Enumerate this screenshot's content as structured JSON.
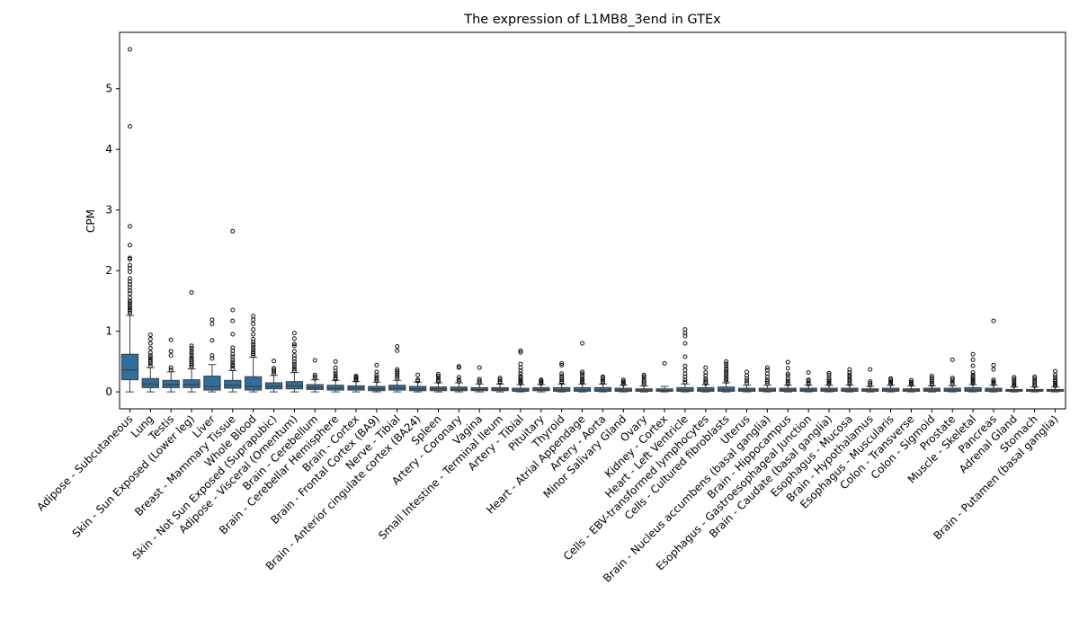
{
  "chart_data": {
    "type": "box",
    "title": "The expression of L1MB8_3end in GTEx",
    "xlabel": "",
    "ylabel": "CPM",
    "ylim": [
      -0.28,
      5.93
    ],
    "yticks": [
      0,
      1,
      2,
      3,
      4,
      5
    ],
    "box_color": "#2e6f9e",
    "grid": false,
    "categories": [
      "Adipose - Subcutaneous",
      "Lung",
      "Testis",
      "Skin - Sun Exposed (Lower leg)",
      "Liver",
      "Breast - Mammary Tissue",
      "Whole Blood",
      "Skin - Not Sun Exposed (Suprapubic)",
      "Adipose - Visceral (Omentum)",
      "Brain - Cerebellum",
      "Brain - Cerebellar Hemisphere",
      "Brain - Cortex",
      "Brain - Frontal Cortex (BA9)",
      "Nerve - Tibial",
      "Brain - Anterior cingulate cortex (BA24)",
      "Spleen",
      "Artery - Coronary",
      "Vagina",
      "Small Intestine - Terminal Ileum",
      "Artery - Tibial",
      "Pituitary",
      "Thyroid",
      "Heart - Atrial Appendage",
      "Artery - Aorta",
      "Minor Salivary Gland",
      "Ovary",
      "Kidney - Cortex",
      "Heart - Left Ventricle",
      "Cells - EBV-transformed lymphocytes",
      "Cells - Cultured fibroblasts",
      "Uterus",
      "Brain - Nucleus accumbens (basal ganglia)",
      "Brain - Hippocampus",
      "Esophagus - Gastroesophageal Junction",
      "Brain - Caudate (basal ganglia)",
      "Esophagus - Mucosa",
      "Brain - Hypothalamus",
      "Esophagus - Muscularis",
      "Colon - Transverse",
      "Colon - Sigmoid",
      "Prostate",
      "Muscle - Skeletal",
      "Pancreas",
      "Adrenal Gland",
      "Stomach",
      "Brain - Putamen (basal ganglia)"
    ],
    "boxes": [
      {
        "min": 0.0,
        "q1": 0.2,
        "median": 0.36,
        "q3": 0.62,
        "max": 1.26,
        "outliers": [
          1.3,
          1.33,
          1.36,
          1.4,
          1.43,
          1.47,
          1.5,
          1.55,
          1.62,
          1.67,
          1.72,
          1.77,
          1.82,
          1.87,
          1.98,
          2.04,
          2.09,
          2.19,
          2.21,
          2.42,
          2.73,
          4.38,
          5.65
        ]
      },
      {
        "min": 0.0,
        "q1": 0.07,
        "median": 0.13,
        "q3": 0.22,
        "max": 0.4,
        "outliers": [
          0.43,
          0.47,
          0.5,
          0.53,
          0.57,
          0.6,
          0.65,
          0.72,
          0.8,
          0.87,
          0.94
        ]
      },
      {
        "min": 0.0,
        "q1": 0.07,
        "median": 0.12,
        "q3": 0.19,
        "max": 0.33,
        "outliers": [
          0.36,
          0.4,
          0.6,
          0.67,
          0.86
        ]
      },
      {
        "min": 0.0,
        "q1": 0.07,
        "median": 0.12,
        "q3": 0.2,
        "max": 0.38,
        "outliers": [
          0.41,
          0.44,
          0.47,
          0.5,
          0.53,
          0.56,
          0.6,
          0.64,
          0.68,
          0.72,
          0.76,
          1.64
        ]
      },
      {
        "min": 0.0,
        "q1": 0.03,
        "median": 0.09,
        "q3": 0.26,
        "max": 0.45,
        "outliers": [
          0.55,
          0.6,
          0.85,
          1.12,
          1.19
        ]
      },
      {
        "min": 0.0,
        "q1": 0.06,
        "median": 0.11,
        "q3": 0.19,
        "max": 0.35,
        "outliers": [
          0.38,
          0.42,
          0.45,
          0.49,
          0.53,
          0.58,
          0.62,
          0.68,
          0.73,
          0.95,
          1.17,
          1.35,
          2.65
        ]
      },
      {
        "min": 0.0,
        "q1": 0.03,
        "median": 0.09,
        "q3": 0.25,
        "max": 0.57,
        "outliers": [
          0.6,
          0.63,
          0.66,
          0.7,
          0.74,
          0.78,
          0.82,
          0.87,
          0.95,
          1.03,
          1.12,
          1.19,
          1.25
        ]
      },
      {
        "min": 0.0,
        "q1": 0.05,
        "median": 0.09,
        "q3": 0.15,
        "max": 0.27,
        "outliers": [
          0.3,
          0.33,
          0.36,
          0.39,
          0.51
        ]
      },
      {
        "min": 0.0,
        "q1": 0.05,
        "median": 0.1,
        "q3": 0.17,
        "max": 0.32,
        "outliers": [
          0.35,
          0.38,
          0.42,
          0.46,
          0.5,
          0.55,
          0.6,
          0.67,
          0.76,
          0.79,
          0.88,
          0.97
        ]
      },
      {
        "min": 0.0,
        "q1": 0.04,
        "median": 0.07,
        "q3": 0.12,
        "max": 0.2,
        "outliers": [
          0.22,
          0.25,
          0.28,
          0.52
        ]
      },
      {
        "min": 0.0,
        "q1": 0.03,
        "median": 0.06,
        "q3": 0.11,
        "max": 0.19,
        "outliers": [
          0.21,
          0.23,
          0.26,
          0.3,
          0.34,
          0.4,
          0.5
        ]
      },
      {
        "min": 0.0,
        "q1": 0.03,
        "median": 0.06,
        "q3": 0.1,
        "max": 0.17,
        "outliers": [
          0.19,
          0.21,
          0.23,
          0.25,
          0.26
        ]
      },
      {
        "min": 0.0,
        "q1": 0.02,
        "median": 0.05,
        "q3": 0.09,
        "max": 0.16,
        "outliers": [
          0.18,
          0.21,
          0.24,
          0.28,
          0.33,
          0.44
        ]
      },
      {
        "min": 0.0,
        "q1": 0.03,
        "median": 0.06,
        "q3": 0.11,
        "max": 0.19,
        "outliers": [
          0.22,
          0.25,
          0.28,
          0.31,
          0.34,
          0.37,
          0.68,
          0.75
        ]
      },
      {
        "min": 0.0,
        "q1": 0.02,
        "median": 0.05,
        "q3": 0.09,
        "max": 0.16,
        "outliers": [
          0.18,
          0.2,
          0.28
        ]
      },
      {
        "min": 0.0,
        "q1": 0.02,
        "median": 0.05,
        "q3": 0.08,
        "max": 0.15,
        "outliers": [
          0.17,
          0.19,
          0.22,
          0.26,
          0.29
        ]
      },
      {
        "min": 0.0,
        "q1": 0.02,
        "median": 0.04,
        "q3": 0.08,
        "max": 0.15,
        "outliers": [
          0.17,
          0.2,
          0.24,
          0.4,
          0.42
        ]
      },
      {
        "min": 0.0,
        "q1": 0.02,
        "median": 0.04,
        "q3": 0.07,
        "max": 0.13,
        "outliers": [
          0.15,
          0.18,
          0.21,
          0.4
        ]
      },
      {
        "min": 0.0,
        "q1": 0.02,
        "median": 0.04,
        "q3": 0.07,
        "max": 0.13,
        "outliers": [
          0.15,
          0.17,
          0.2,
          0.23
        ]
      },
      {
        "min": 0.0,
        "q1": 0.01,
        "median": 0.03,
        "q3": 0.06,
        "max": 0.12,
        "outliers": [
          0.14,
          0.16,
          0.18,
          0.2,
          0.23,
          0.26,
          0.3,
          0.35,
          0.4,
          0.46,
          0.65,
          0.68
        ]
      },
      {
        "min": 0.0,
        "q1": 0.02,
        "median": 0.04,
        "q3": 0.07,
        "max": 0.12,
        "outliers": [
          0.14,
          0.16,
          0.18,
          0.2
        ]
      },
      {
        "min": 0.0,
        "q1": 0.01,
        "median": 0.03,
        "q3": 0.07,
        "max": 0.13,
        "outliers": [
          0.15,
          0.17,
          0.2,
          0.23,
          0.26,
          0.3,
          0.44,
          0.47
        ]
      },
      {
        "min": 0.0,
        "q1": 0.01,
        "median": 0.03,
        "q3": 0.07,
        "max": 0.13,
        "outliers": [
          0.15,
          0.17,
          0.19,
          0.22,
          0.26,
          0.3,
          0.33,
          0.8
        ]
      },
      {
        "min": 0.0,
        "q1": 0.01,
        "median": 0.03,
        "q3": 0.07,
        "max": 0.13,
        "outliers": [
          0.15,
          0.17,
          0.2,
          0.23,
          0.25
        ]
      },
      {
        "min": 0.0,
        "q1": 0.01,
        "median": 0.03,
        "q3": 0.06,
        "max": 0.11,
        "outliers": [
          0.13,
          0.15,
          0.17,
          0.2
        ]
      },
      {
        "min": 0.0,
        "q1": 0.01,
        "median": 0.03,
        "q3": 0.05,
        "max": 0.1,
        "outliers": [
          0.12,
          0.15,
          0.18,
          0.21,
          0.25,
          0.28
        ]
      },
      {
        "min": 0.0,
        "q1": 0.01,
        "median": 0.02,
        "q3": 0.05,
        "max": 0.09,
        "outliers": [
          0.47
        ]
      },
      {
        "min": 0.0,
        "q1": 0.01,
        "median": 0.03,
        "q3": 0.07,
        "max": 0.13,
        "outliers": [
          0.16,
          0.2,
          0.25,
          0.3,
          0.36,
          0.43,
          0.58,
          0.8,
          0.92,
          0.97,
          1.03
        ]
      },
      {
        "min": 0.0,
        "q1": 0.01,
        "median": 0.03,
        "q3": 0.07,
        "max": 0.12,
        "outliers": [
          0.14,
          0.16,
          0.19,
          0.22,
          0.27,
          0.32,
          0.4
        ]
      },
      {
        "min": 0.0,
        "q1": 0.01,
        "median": 0.03,
        "q3": 0.08,
        "max": 0.15,
        "outliers": [
          0.17,
          0.2,
          0.22,
          0.25,
          0.28,
          0.31,
          0.34,
          0.38,
          0.42,
          0.46,
          0.5
        ]
      },
      {
        "min": 0.0,
        "q1": 0.01,
        "median": 0.03,
        "q3": 0.06,
        "max": 0.11,
        "outliers": [
          0.14,
          0.18,
          0.22,
          0.27,
          0.33
        ]
      },
      {
        "min": 0.0,
        "q1": 0.01,
        "median": 0.03,
        "q3": 0.06,
        "max": 0.11,
        "outliers": [
          0.14,
          0.17,
          0.2,
          0.25,
          0.3,
          0.36,
          0.4
        ]
      },
      {
        "min": 0.0,
        "q1": 0.01,
        "median": 0.03,
        "q3": 0.06,
        "max": 0.11,
        "outliers": [
          0.13,
          0.15,
          0.18,
          0.22,
          0.27,
          0.3,
          0.39,
          0.49
        ]
      },
      {
        "min": 0.0,
        "q1": 0.01,
        "median": 0.03,
        "q3": 0.06,
        "max": 0.11,
        "outliers": [
          0.13,
          0.15,
          0.18,
          0.2,
          0.32
        ]
      },
      {
        "min": 0.0,
        "q1": 0.01,
        "median": 0.03,
        "q3": 0.06,
        "max": 0.11,
        "outliers": [
          0.13,
          0.15,
          0.17,
          0.2,
          0.23,
          0.28,
          0.31
        ]
      },
      {
        "min": 0.0,
        "q1": 0.01,
        "median": 0.03,
        "q3": 0.06,
        "max": 0.11,
        "outliers": [
          0.13,
          0.15,
          0.18,
          0.21,
          0.25,
          0.28,
          0.32,
          0.37
        ]
      },
      {
        "min": 0.0,
        "q1": 0.01,
        "median": 0.03,
        "q3": 0.05,
        "max": 0.09,
        "outliers": [
          0.11,
          0.14,
          0.17,
          0.37
        ]
      },
      {
        "min": 0.0,
        "q1": 0.01,
        "median": 0.03,
        "q3": 0.06,
        "max": 0.11,
        "outliers": [
          0.13,
          0.15,
          0.17,
          0.2,
          0.22
        ]
      },
      {
        "min": 0.0,
        "q1": 0.01,
        "median": 0.03,
        "q3": 0.05,
        "max": 0.1,
        "outliers": [
          0.12,
          0.14,
          0.16,
          0.19
        ]
      },
      {
        "min": 0.0,
        "q1": 0.01,
        "median": 0.03,
        "q3": 0.06,
        "max": 0.1,
        "outliers": [
          0.12,
          0.14,
          0.17,
          0.2,
          0.23,
          0.26
        ]
      },
      {
        "min": 0.0,
        "q1": 0.01,
        "median": 0.03,
        "q3": 0.06,
        "max": 0.1,
        "outliers": [
          0.13,
          0.16,
          0.2,
          0.23,
          0.53
        ]
      },
      {
        "min": 0.0,
        "q1": 0.01,
        "median": 0.03,
        "q3": 0.07,
        "max": 0.12,
        "outliers": [
          0.14,
          0.16,
          0.18,
          0.2,
          0.22,
          0.25,
          0.28,
          0.32,
          0.43,
          0.53,
          0.62
        ]
      },
      {
        "min": 0.0,
        "q1": 0.01,
        "median": 0.03,
        "q3": 0.06,
        "max": 0.11,
        "outliers": [
          0.13,
          0.15,
          0.17,
          0.2,
          0.37,
          0.44,
          1.17
        ]
      },
      {
        "min": 0.0,
        "q1": 0.01,
        "median": 0.02,
        "q3": 0.04,
        "max": 0.08,
        "outliers": [
          0.1,
          0.12,
          0.14,
          0.17,
          0.21,
          0.24
        ]
      },
      {
        "min": 0.0,
        "q1": 0.01,
        "median": 0.02,
        "q3": 0.04,
        "max": 0.08,
        "outliers": [
          0.1,
          0.12,
          0.15,
          0.18,
          0.22,
          0.25
        ]
      },
      {
        "min": 0.0,
        "q1": 0.01,
        "median": 0.02,
        "q3": 0.04,
        "max": 0.08,
        "outliers": [
          0.1,
          0.12,
          0.14,
          0.17,
          0.2,
          0.24,
          0.28,
          0.34
        ]
      }
    ]
  }
}
